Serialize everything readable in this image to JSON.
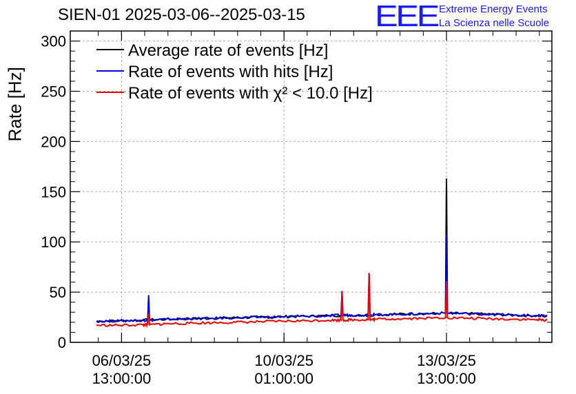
{
  "title": "SIEN-01 2025-03-06--2025-03-15",
  "logo": {
    "mark": "EEE",
    "line1": "Extreme Energy Events",
    "line2": "La Scienza nelle Scuole",
    "color": "#1a1aff"
  },
  "chart_data": {
    "type": "line",
    "title": "SIEN-01 2025-03-06--2025-03-15",
    "ylabel": "Rate [Hz]",
    "xlabel": "",
    "ylim": [
      0,
      310
    ],
    "yticks": [
      0,
      50,
      100,
      150,
      200,
      250,
      300
    ],
    "x_unit": "hours since 06/03/25 00:00:00",
    "xlim": [
      -13.5,
      235.5
    ],
    "xticks": [
      {
        "x": 13,
        "line1": "06/03/25",
        "line2": "13:00:00"
      },
      {
        "x": 97,
        "line1": "10/03/25",
        "line2": "01:00:00"
      },
      {
        "x": 181,
        "line1": "13/03/25",
        "line2": "13:00:00"
      }
    ],
    "grid": true,
    "legend_position": "top-left",
    "series": [
      {
        "name": "Average rate of events [Hz]",
        "color": "#000000",
        "x": [
          0,
          12,
          24,
          36,
          48,
          60,
          72,
          84,
          96,
          108,
          120,
          132,
          144,
          156,
          168,
          180.5,
          181,
          181.5,
          192,
          204,
          216,
          228,
          233
        ],
        "values": [
          21,
          21.5,
          22,
          23,
          23.5,
          24,
          24.5,
          25,
          25.5,
          26,
          26.5,
          27,
          27.5,
          28,
          28.5,
          29,
          163,
          29,
          28.5,
          28,
          27,
          26.5,
          26
        ]
      },
      {
        "name": "Rate of events with hits [Hz]",
        "color": "#0000dd",
        "x": [
          0,
          12,
          24,
          26.5,
          27,
          27.5,
          36,
          48,
          60,
          72,
          84,
          96,
          108,
          120,
          126.5,
          127,
          127.5,
          132,
          140.5,
          141,
          141.5,
          144,
          156,
          168,
          180.5,
          181,
          181.5,
          192,
          204,
          216,
          228,
          233
        ],
        "values": [
          21,
          21.5,
          22,
          22,
          47,
          22,
          23,
          23.5,
          24,
          24.5,
          25,
          25.5,
          26,
          26.5,
          27,
          51,
          27,
          27,
          27,
          69,
          27,
          27.5,
          28,
          28.5,
          29,
          108,
          29,
          28.5,
          28,
          27,
          26.5,
          26
        ]
      },
      {
        "name": "Rate of events with χ² < 10.0 [Hz]",
        "color": "#ee0000",
        "x": [
          0,
          12,
          24,
          26.5,
          27,
          27.5,
          36,
          48,
          60,
          72,
          84,
          96,
          108,
          120,
          126.5,
          127,
          127.5,
          132,
          140.5,
          141,
          141.5,
          144,
          156,
          168,
          180.5,
          181,
          181.5,
          192,
          204,
          216,
          228,
          233
        ],
        "values": [
          17,
          17,
          17.5,
          17.5,
          29,
          17.5,
          18.5,
          19,
          19.5,
          20,
          20.5,
          21,
          21.5,
          22,
          22,
          50,
          22,
          22.5,
          22.5,
          68,
          22.5,
          23,
          23.5,
          24,
          24.5,
          61,
          24.5,
          24,
          23.5,
          23,
          22.5,
          22
        ]
      }
    ],
    "legend": [
      {
        "label": "Average rate of events [Hz]",
        "color": "#000000"
      },
      {
        "label": "Rate of events with hits [Hz]",
        "color": "#0000dd"
      },
      {
        "label": "Rate of events with χ² < 10.0 [Hz]",
        "color": "#ee0000"
      }
    ]
  }
}
